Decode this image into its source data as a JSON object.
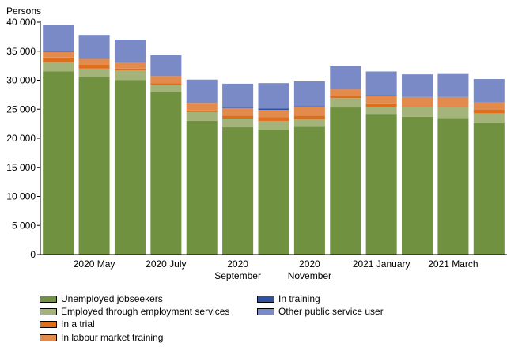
{
  "chart_data": {
    "type": "bar",
    "stacked": true,
    "ylabel": "Persons",
    "ylim": [
      0,
      40000
    ],
    "yticks": [
      0,
      5000,
      10000,
      15000,
      20000,
      25000,
      30000,
      35000,
      40000
    ],
    "ytick_labels": [
      "0",
      "5 000",
      "10 000",
      "15 000",
      "20 000",
      "25 000",
      "30 000",
      "35 000",
      "40 000"
    ],
    "xtick_labels": [
      {
        "text": [
          "2020 May"
        ],
        "bar": 1
      },
      {
        "text": [
          "2020 July"
        ],
        "bar": 3
      },
      {
        "text": [
          "2020",
          "September"
        ],
        "bar": 5
      },
      {
        "text": [
          "2020",
          "November"
        ],
        "bar": 7
      },
      {
        "text": [
          "2021 January"
        ],
        "bar": 9
      },
      {
        "text": [
          "2021 March"
        ],
        "bar": 11
      }
    ],
    "categories": [
      "2020-04",
      "2020-05",
      "2020-06",
      "2020-07",
      "2020-08",
      "2020-09",
      "2020-10",
      "2020-11",
      "2020-12",
      "2021-01",
      "2021-02",
      "2021-03",
      "2021-04"
    ],
    "series": [
      {
        "name": "Unemployed jobseekers",
        "color": "#6f9140",
        "values": [
          31500,
          30500,
          30000,
          28000,
          23000,
          21900,
          21500,
          22000,
          25300,
          24200,
          23700,
          23500,
          22600
        ]
      },
      {
        "name": "Employed through employment services",
        "color": "#a4b379",
        "values": [
          1600,
          1500,
          1700,
          1200,
          1500,
          1500,
          1500,
          1300,
          1600,
          1200,
          1700,
          1800,
          1700
        ]
      },
      {
        "name": "In a trial",
        "color": "#de6d1c",
        "values": [
          800,
          700,
          300,
          300,
          300,
          500,
          600,
          600,
          400,
          600,
          100,
          100,
          600
        ]
      },
      {
        "name": "In labour market training",
        "color": "#e38b4d",
        "values": [
          1000,
          1000,
          1000,
          1200,
          1300,
          1300,
          1300,
          1500,
          1200,
          1300,
          1600,
          1700,
          1300
        ]
      },
      {
        "name": "In training",
        "color": "#2f51a0",
        "values": [
          200,
          100,
          0,
          0,
          0,
          100,
          200,
          100,
          0,
          100,
          0,
          0,
          0
        ]
      },
      {
        "name": "Other public service user",
        "color": "#7a8ac7",
        "values": [
          4400,
          4000,
          4000,
          3600,
          4000,
          4100,
          4400,
          4300,
          3900,
          4100,
          3900,
          4100,
          4000
        ]
      }
    ],
    "legend_position": "bottom",
    "grid": false
  }
}
